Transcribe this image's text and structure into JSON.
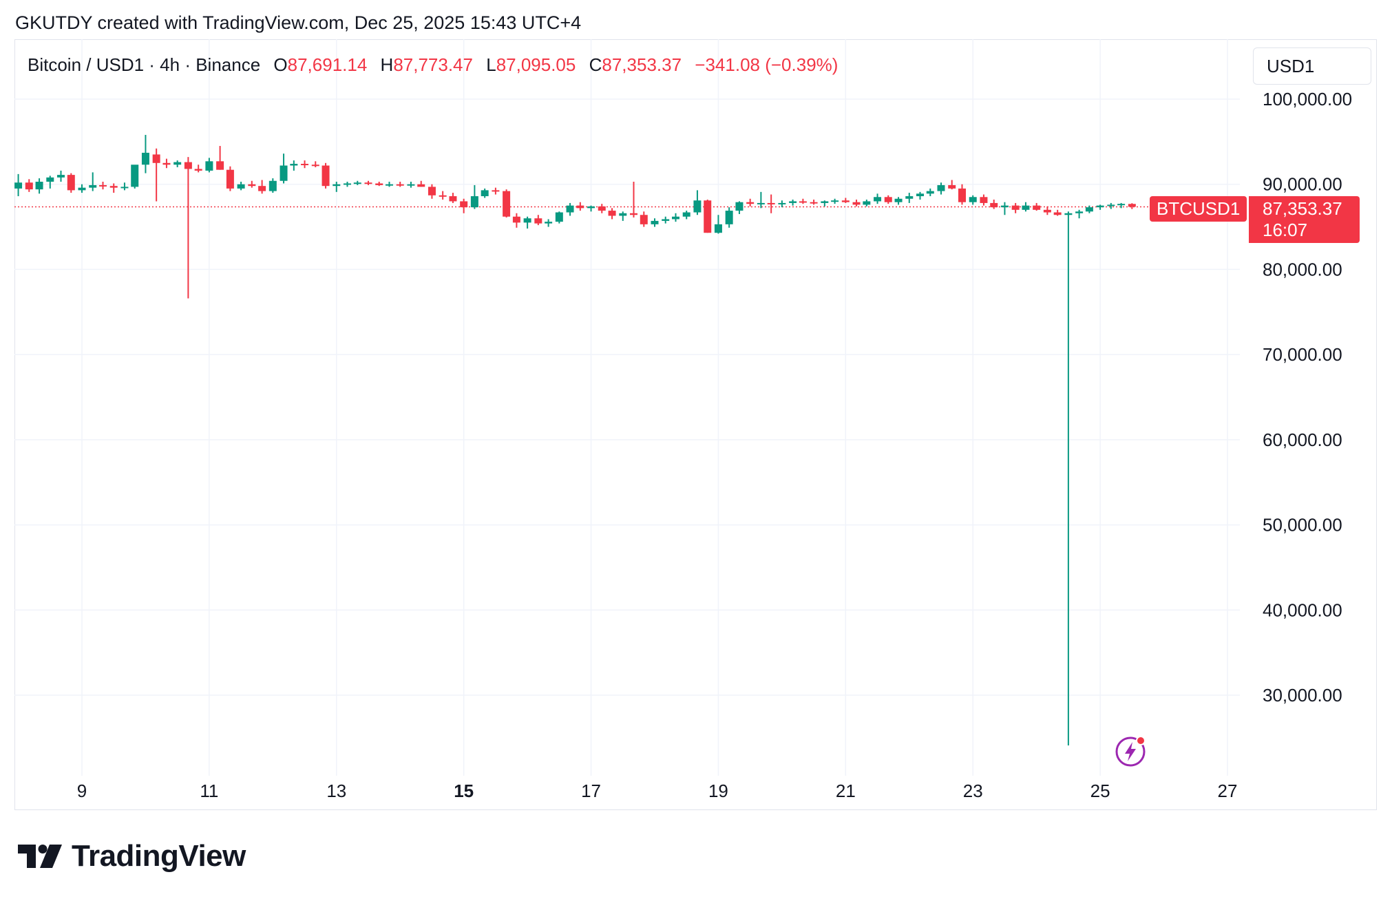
{
  "header": {
    "attribution": "GKUTDY created with TradingView.com, Dec 25, 2025 15:43 UTC+4"
  },
  "legend": {
    "symbol": "Bitcoin / USD1 · 4h · Binance",
    "open_label": "O",
    "open": "87,691.14",
    "high_label": "H",
    "high": "87,773.47",
    "low_label": "L",
    "low": "87,095.05",
    "close_label": "C",
    "close": "87,353.37",
    "change": "−341.08 (−0.39%)"
  },
  "currency": "USD1",
  "price_tag": {
    "symbol": "BTCUSD1",
    "price": "87,353.37",
    "countdown": "16:07"
  },
  "footer": {
    "brand": "TradingView"
  },
  "colors": {
    "up": "#089981",
    "down": "#f23645",
    "grid": "#f0f3fa",
    "text": "#131722"
  },
  "chart_data": {
    "type": "candlestick",
    "y_ticks": [
      "100,000.00",
      "90,000.00",
      "80,000.00",
      "70,000.00",
      "60,000.00",
      "50,000.00",
      "40,000.00",
      "30,000.00"
    ],
    "y_tick_values": [
      100000,
      90000,
      80000,
      70000,
      60000,
      50000,
      40000,
      30000
    ],
    "x_ticks": [
      "9",
      "11",
      "13",
      "15",
      "17",
      "19",
      "21",
      "23",
      "25",
      "27"
    ],
    "x_tick_values": [
      9,
      11,
      13,
      15,
      17,
      19,
      21,
      23,
      25,
      27
    ],
    "x_tick_bold": "15",
    "grid": true,
    "last_price": 87353.37,
    "candles": [
      {
        "t": 8.0,
        "o": 89500,
        "h": 91200,
        "l": 88600,
        "c": 90200
      },
      {
        "t": 8.17,
        "o": 90200,
        "h": 90600,
        "l": 89100,
        "c": 89400
      },
      {
        "t": 8.33,
        "o": 89400,
        "h": 90700,
        "l": 88900,
        "c": 90300
      },
      {
        "t": 8.5,
        "o": 90300,
        "h": 91000,
        "l": 89500,
        "c": 90800
      },
      {
        "t": 8.67,
        "o": 90800,
        "h": 91600,
        "l": 90300,
        "c": 91100
      },
      {
        "t": 8.83,
        "o": 91100,
        "h": 91300,
        "l": 89000,
        "c": 89300
      },
      {
        "t": 9.0,
        "o": 89300,
        "h": 90000,
        "l": 89000,
        "c": 89600
      },
      {
        "t": 9.17,
        "o": 89600,
        "h": 91400,
        "l": 89200,
        "c": 89900
      },
      {
        "t": 9.33,
        "o": 89900,
        "h": 90300,
        "l": 89400,
        "c": 89800
      },
      {
        "t": 9.5,
        "o": 89800,
        "h": 90100,
        "l": 89000,
        "c": 89600
      },
      {
        "t": 9.67,
        "o": 89600,
        "h": 90200,
        "l": 89300,
        "c": 89700
      },
      {
        "t": 9.83,
        "o": 89700,
        "h": 91900,
        "l": 89500,
        "c": 92300
      },
      {
        "t": 10.0,
        "o": 92300,
        "h": 95800,
        "l": 91300,
        "c": 93700
      },
      {
        "t": 10.17,
        "o": 93500,
        "h": 94200,
        "l": 88000,
        "c": 92500
      },
      {
        "t": 10.33,
        "o": 92500,
        "h": 93000,
        "l": 91900,
        "c": 92300
      },
      {
        "t": 10.5,
        "o": 92300,
        "h": 92800,
        "l": 92000,
        "c": 92600
      },
      {
        "t": 10.67,
        "o": 92600,
        "h": 93200,
        "l": 76600,
        "c": 91800
      },
      {
        "t": 10.83,
        "o": 91800,
        "h": 92300,
        "l": 91400,
        "c": 91600
      },
      {
        "t": 11.0,
        "o": 91600,
        "h": 93100,
        "l": 91400,
        "c": 92700
      },
      {
        "t": 11.17,
        "o": 92700,
        "h": 94500,
        "l": 91700,
        "c": 91700
      },
      {
        "t": 11.33,
        "o": 91700,
        "h": 92100,
        "l": 89200,
        "c": 89500
      },
      {
        "t": 11.5,
        "o": 89500,
        "h": 90300,
        "l": 89300,
        "c": 90000
      },
      {
        "t": 11.67,
        "o": 90000,
        "h": 90400,
        "l": 89600,
        "c": 89800
      },
      {
        "t": 11.83,
        "o": 89800,
        "h": 90500,
        "l": 88900,
        "c": 89200
      },
      {
        "t": 12.0,
        "o": 89200,
        "h": 90700,
        "l": 89000,
        "c": 90400
      },
      {
        "t": 12.17,
        "o": 90400,
        "h": 93600,
        "l": 90100,
        "c": 92200
      },
      {
        "t": 12.33,
        "o": 92200,
        "h": 92800,
        "l": 91600,
        "c": 92400
      },
      {
        "t": 12.5,
        "o": 92400,
        "h": 92800,
        "l": 91900,
        "c": 92300
      },
      {
        "t": 12.67,
        "o": 92300,
        "h": 92700,
        "l": 92000,
        "c": 92200
      },
      {
        "t": 12.83,
        "o": 92200,
        "h": 92500,
        "l": 89500,
        "c": 89800
      },
      {
        "t": 13.0,
        "o": 89800,
        "h": 90300,
        "l": 89100,
        "c": 90000
      },
      {
        "t": 13.17,
        "o": 90000,
        "h": 90300,
        "l": 89700,
        "c": 90100
      },
      {
        "t": 13.33,
        "o": 90100,
        "h": 90400,
        "l": 89900,
        "c": 90200
      },
      {
        "t": 13.5,
        "o": 90200,
        "h": 90400,
        "l": 89900,
        "c": 90100
      },
      {
        "t": 13.67,
        "o": 90100,
        "h": 90300,
        "l": 89800,
        "c": 89900
      },
      {
        "t": 13.83,
        "o": 89900,
        "h": 90300,
        "l": 89700,
        "c": 90000
      },
      {
        "t": 14.0,
        "o": 90000,
        "h": 90300,
        "l": 89700,
        "c": 89900
      },
      {
        "t": 14.17,
        "o": 89900,
        "h": 90300,
        "l": 89600,
        "c": 90000
      },
      {
        "t": 14.33,
        "o": 90000,
        "h": 90400,
        "l": 89700,
        "c": 89700
      },
      {
        "t": 14.5,
        "o": 89700,
        "h": 90000,
        "l": 88300,
        "c": 88700
      },
      {
        "t": 14.67,
        "o": 88700,
        "h": 89200,
        "l": 88200,
        "c": 88600
      },
      {
        "t": 14.83,
        "o": 88600,
        "h": 89000,
        "l": 87800,
        "c": 88000
      },
      {
        "t": 15.0,
        "o": 88000,
        "h": 88300,
        "l": 86600,
        "c": 87300
      },
      {
        "t": 15.17,
        "o": 87300,
        "h": 89900,
        "l": 87100,
        "c": 88600
      },
      {
        "t": 15.33,
        "o": 88600,
        "h": 89500,
        "l": 88400,
        "c": 89300
      },
      {
        "t": 15.5,
        "o": 89300,
        "h": 89600,
        "l": 88800,
        "c": 89200
      },
      {
        "t": 15.67,
        "o": 89200,
        "h": 89400,
        "l": 86100,
        "c": 86200
      },
      {
        "t": 15.83,
        "o": 86200,
        "h": 86600,
        "l": 84900,
        "c": 85500
      },
      {
        "t": 16.0,
        "o": 85500,
        "h": 86200,
        "l": 84800,
        "c": 86000
      },
      {
        "t": 16.17,
        "o": 86000,
        "h": 86400,
        "l": 85200,
        "c": 85400
      },
      {
        "t": 16.33,
        "o": 85400,
        "h": 85900,
        "l": 85000,
        "c": 85600
      },
      {
        "t": 16.5,
        "o": 85600,
        "h": 86800,
        "l": 85400,
        "c": 86700
      },
      {
        "t": 16.67,
        "o": 86700,
        "h": 87800,
        "l": 86300,
        "c": 87500
      },
      {
        "t": 16.83,
        "o": 87500,
        "h": 87900,
        "l": 86900,
        "c": 87200
      },
      {
        "t": 17.0,
        "o": 87200,
        "h": 87500,
        "l": 86800,
        "c": 87400
      },
      {
        "t": 17.17,
        "o": 87400,
        "h": 87700,
        "l": 86600,
        "c": 86900
      },
      {
        "t": 17.33,
        "o": 86900,
        "h": 87200,
        "l": 85900,
        "c": 86300
      },
      {
        "t": 17.5,
        "o": 86300,
        "h": 86800,
        "l": 85700,
        "c": 86600
      },
      {
        "t": 17.67,
        "o": 86600,
        "h": 90300,
        "l": 86100,
        "c": 86400
      },
      {
        "t": 17.83,
        "o": 86400,
        "h": 86800,
        "l": 85000,
        "c": 85300
      },
      {
        "t": 18.0,
        "o": 85300,
        "h": 86000,
        "l": 85000,
        "c": 85700
      },
      {
        "t": 18.17,
        "o": 85700,
        "h": 86200,
        "l": 85400,
        "c": 85900
      },
      {
        "t": 18.33,
        "o": 85900,
        "h": 86600,
        "l": 85600,
        "c": 86200
      },
      {
        "t": 18.5,
        "o": 86200,
        "h": 86900,
        "l": 85900,
        "c": 86700
      },
      {
        "t": 18.67,
        "o": 86700,
        "h": 89300,
        "l": 86400,
        "c": 88100
      },
      {
        "t": 18.83,
        "o": 88100,
        "h": 88200,
        "l": 84300,
        "c": 84300
      },
      {
        "t": 19.0,
        "o": 84300,
        "h": 86400,
        "l": 84200,
        "c": 85300
      },
      {
        "t": 19.17,
        "o": 85300,
        "h": 87300,
        "l": 84900,
        "c": 86900
      },
      {
        "t": 19.33,
        "o": 86900,
        "h": 88000,
        "l": 86500,
        "c": 87900
      },
      {
        "t": 19.5,
        "o": 87900,
        "h": 88300,
        "l": 87400,
        "c": 87700
      },
      {
        "t": 19.67,
        "o": 87700,
        "h": 89100,
        "l": 87200,
        "c": 87800
      },
      {
        "t": 19.83,
        "o": 87800,
        "h": 88800,
        "l": 86600,
        "c": 87700
      },
      {
        "t": 20.0,
        "o": 87700,
        "h": 88100,
        "l": 87300,
        "c": 87800
      },
      {
        "t": 20.17,
        "o": 87800,
        "h": 88200,
        "l": 87500,
        "c": 88000
      },
      {
        "t": 20.33,
        "o": 88000,
        "h": 88300,
        "l": 87700,
        "c": 87900
      },
      {
        "t": 20.5,
        "o": 87900,
        "h": 88200,
        "l": 87600,
        "c": 87800
      },
      {
        "t": 20.67,
        "o": 87800,
        "h": 88100,
        "l": 87400,
        "c": 88000
      },
      {
        "t": 20.83,
        "o": 88000,
        "h": 88300,
        "l": 87700,
        "c": 88100
      },
      {
        "t": 21.0,
        "o": 88100,
        "h": 88400,
        "l": 87800,
        "c": 87900
      },
      {
        "t": 21.17,
        "o": 87900,
        "h": 88200,
        "l": 87400,
        "c": 87600
      },
      {
        "t": 21.33,
        "o": 87600,
        "h": 88200,
        "l": 87400,
        "c": 88000
      },
      {
        "t": 21.5,
        "o": 88000,
        "h": 88900,
        "l": 87700,
        "c": 88500
      },
      {
        "t": 21.67,
        "o": 88500,
        "h": 88700,
        "l": 87700,
        "c": 87900
      },
      {
        "t": 21.83,
        "o": 87900,
        "h": 88500,
        "l": 87600,
        "c": 88300
      },
      {
        "t": 22.0,
        "o": 88300,
        "h": 89000,
        "l": 87800,
        "c": 88600
      },
      {
        "t": 22.17,
        "o": 88600,
        "h": 89100,
        "l": 88200,
        "c": 88900
      },
      {
        "t": 22.33,
        "o": 88900,
        "h": 89500,
        "l": 88600,
        "c": 89200
      },
      {
        "t": 22.5,
        "o": 89200,
        "h": 90200,
        "l": 88800,
        "c": 89900
      },
      {
        "t": 22.67,
        "o": 89900,
        "h": 90500,
        "l": 89400,
        "c": 89500
      },
      {
        "t": 22.83,
        "o": 89500,
        "h": 90000,
        "l": 87600,
        "c": 87900
      },
      {
        "t": 23.0,
        "o": 87900,
        "h": 88700,
        "l": 87600,
        "c": 88500
      },
      {
        "t": 23.17,
        "o": 88500,
        "h": 88800,
        "l": 87500,
        "c": 87800
      },
      {
        "t": 23.33,
        "o": 87800,
        "h": 88200,
        "l": 87100,
        "c": 87300
      },
      {
        "t": 23.5,
        "o": 87300,
        "h": 87900,
        "l": 86400,
        "c": 87500
      },
      {
        "t": 23.67,
        "o": 87500,
        "h": 87800,
        "l": 86600,
        "c": 87000
      },
      {
        "t": 23.83,
        "o": 87000,
        "h": 87900,
        "l": 86800,
        "c": 87500
      },
      {
        "t": 24.0,
        "o": 87500,
        "h": 87800,
        "l": 86900,
        "c": 87000
      },
      {
        "t": 24.17,
        "o": 87000,
        "h": 87400,
        "l": 86400,
        "c": 86700
      },
      {
        "t": 24.33,
        "o": 86700,
        "h": 87000,
        "l": 86300,
        "c": 86400
      },
      {
        "t": 24.5,
        "o": 86400,
        "h": 86800,
        "l": 24100,
        "c": 86600
      },
      {
        "t": 24.67,
        "o": 86600,
        "h": 87000,
        "l": 86000,
        "c": 86800
      },
      {
        "t": 24.83,
        "o": 86800,
        "h": 87500,
        "l": 86600,
        "c": 87300
      },
      {
        "t": 25.0,
        "o": 87300,
        "h": 87600,
        "l": 87000,
        "c": 87500
      },
      {
        "t": 25.17,
        "o": 87500,
        "h": 87800,
        "l": 87100,
        "c": 87600
      },
      {
        "t": 25.33,
        "o": 87600,
        "h": 87800,
        "l": 87200,
        "c": 87700
      },
      {
        "t": 25.5,
        "o": 87691.14,
        "h": 87773.47,
        "l": 87095.05,
        "c": 87353.37
      }
    ]
  }
}
